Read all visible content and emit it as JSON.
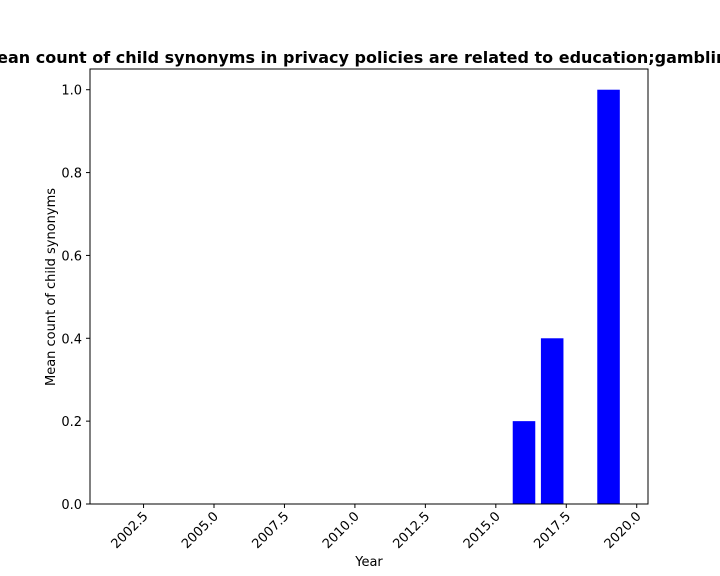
{
  "chart_data": {
    "type": "bar",
    "title": "Mean count of child synonyms in privacy policies are related to education;gambling",
    "xlabel": "Year",
    "ylabel": "Mean count of child synonyms",
    "x": [
      2016,
      2017,
      2019
    ],
    "values": [
      0.2,
      0.4,
      1.0
    ],
    "xlim": [
      2000.6,
      2020.4
    ],
    "ylim": [
      0.0,
      1.05
    ],
    "xticks": [
      2002.5,
      2005.0,
      2007.5,
      2010.0,
      2012.5,
      2015.0,
      2017.5,
      2020.0
    ],
    "xtick_labels": [
      "2002.5",
      "2005.0",
      "2007.5",
      "2010.0",
      "2012.5",
      "2015.0",
      "2017.5",
      "2020.0"
    ],
    "yticks": [
      0.0,
      0.2,
      0.4,
      0.6,
      0.8,
      1.0
    ],
    "ytick_labels": [
      "0.0",
      "0.2",
      "0.4",
      "0.6",
      "0.8",
      "1.0"
    ],
    "bar_color": "#0000ff",
    "grid": false
  }
}
